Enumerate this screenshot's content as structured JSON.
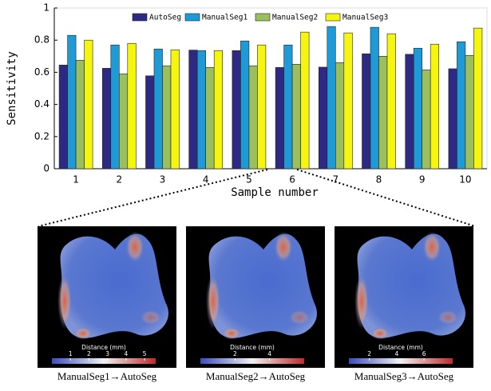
{
  "chart_data": {
    "type": "bar",
    "xlabel": "Sample number",
    "ylabel": "Sensitivity",
    "categories": [
      "1",
      "2",
      "3",
      "4",
      "5",
      "6",
      "7",
      "8",
      "9",
      "10"
    ],
    "series": [
      {
        "name": "AutoSeg",
        "color": "#2e2a84",
        "values": [
          0.645,
          0.625,
          0.578,
          0.738,
          0.735,
          0.63,
          0.632,
          0.715,
          0.712,
          0.622
        ]
      },
      {
        "name": "ManualSeg1",
        "color": "#1e9ad6",
        "values": [
          0.83,
          0.77,
          0.745,
          0.735,
          0.795,
          0.77,
          0.885,
          0.88,
          0.75,
          0.79
        ]
      },
      {
        "name": "ManualSeg2",
        "color": "#9cbf5d",
        "values": [
          0.675,
          0.59,
          0.64,
          0.63,
          0.64,
          0.65,
          0.66,
          0.7,
          0.615,
          0.705
        ]
      },
      {
        "name": "ManualSeg3",
        "color": "#f5f50e",
        "values": [
          0.8,
          0.78,
          0.74,
          0.735,
          0.77,
          0.85,
          0.845,
          0.84,
          0.775,
          0.875
        ]
      }
    ],
    "ylim": [
      0,
      1
    ],
    "yticks": [
      0,
      0.2,
      0.4,
      0.6,
      0.8,
      1
    ],
    "legend": "top"
  },
  "panels": [
    {
      "colorbar_label": "Distance (mm)",
      "clim": [
        0,
        5.6
      ],
      "ticks": [
        1,
        2,
        3,
        4,
        5
      ],
      "caption": "ManualSeg1→AutoSeg"
    },
    {
      "colorbar_label": "Distance (mm)",
      "clim": [
        0,
        6
      ],
      "ticks": [
        2,
        4
      ],
      "caption": "ManualSeg2→AutoSeg"
    },
    {
      "colorbar_label": "Distance (mm)",
      "clim": [
        0.5,
        8.1
      ],
      "ticks": [
        2,
        4,
        6
      ],
      "caption": "ManualSeg3→AutoSeg"
    }
  ]
}
